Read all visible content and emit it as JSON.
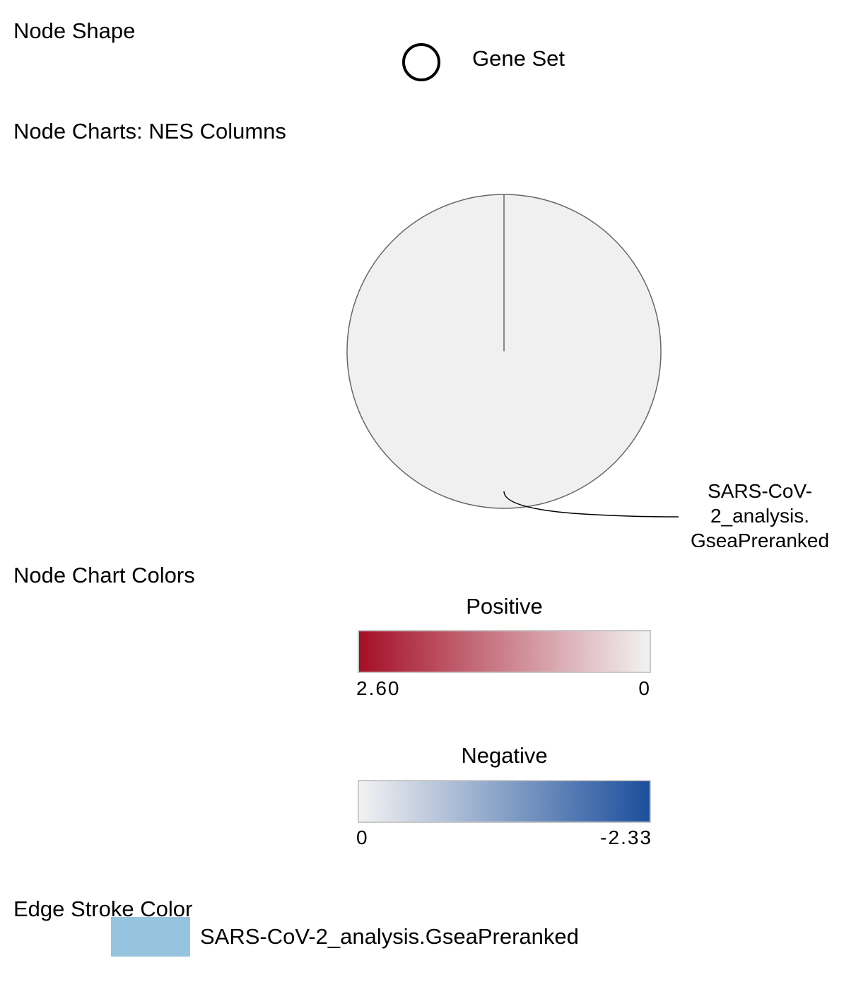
{
  "node_shape": {
    "title": "Node Shape",
    "shape_icon": "circle-outline-icon",
    "shape_label": "Gene Set"
  },
  "node_charts": {
    "title": "Node Charts: NES Columns",
    "slice_color": "#f0f0f0",
    "outline_color": "#666666",
    "label_lines": [
      "SARS-CoV-",
      "2_analysis.",
      "GseaPreranked"
    ]
  },
  "node_chart_colors": {
    "title": "Node Chart Colors",
    "positive": {
      "title": "Positive",
      "max_label": "2.60",
      "min_label": "0",
      "color_start": "#a50f26",
      "color_end": "#f2f2f2"
    },
    "negative": {
      "title": "Negative",
      "min_label": "0",
      "max_label": "-2.33",
      "color_start": "#f2f2f2",
      "color_end": "#1c4f9c"
    }
  },
  "edge_stroke_color": {
    "title": "Edge Stroke Color",
    "items": [
      {
        "color": "#96c3de",
        "label": "SARS-CoV-2_analysis.GseaPreranked"
      }
    ]
  }
}
